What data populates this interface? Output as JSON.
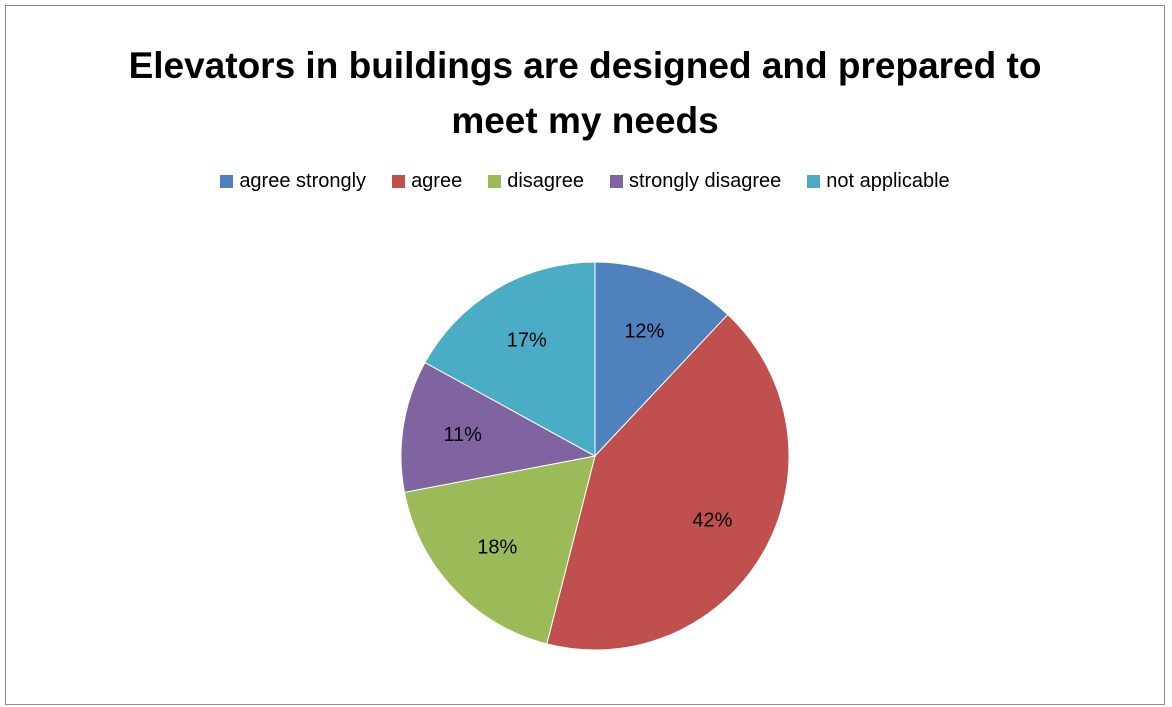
{
  "chart_data": {
    "type": "pie",
    "title_lines": [
      "Elevators in buildings are designed and prepared to",
      "meet my needs"
    ],
    "legend_position": "top",
    "categories": [
      "agree strongly",
      "agree",
      "disagree",
      "strongly disagree",
      "not applicable"
    ],
    "values": [
      12,
      42,
      18,
      11,
      17
    ],
    "data_labels": [
      "12%",
      "42%",
      "18%",
      "11%",
      "17%"
    ],
    "colors": [
      "#4f81bd",
      "#c0504d",
      "#9bbb59",
      "#8064a2",
      "#4bacc6"
    ]
  }
}
